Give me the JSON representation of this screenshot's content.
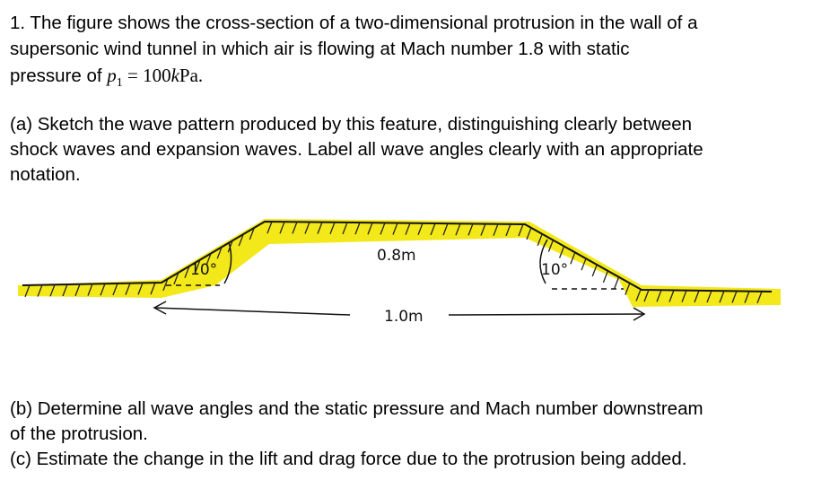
{
  "question": {
    "line1": "1. The figure shows the cross-section of a two-dimensional protrusion in the wall of a",
    "line2": "supersonic wind tunnel in which air is flowing at Mach number 1.8 with static",
    "line3_prefix": "pressure of ",
    "pressure_symbol": "p",
    "pressure_subscript": "1",
    "pressure_eq": " = 100",
    "pressure_unit_k": "k",
    "pressure_unit_rest": "Pa."
  },
  "part_a": {
    "line1": "(a) Sketch the wave pattern produced by this feature, distinguishing clearly between",
    "line2": "shock waves and expansion waves. Label all wave angles clearly with an appropriate",
    "line3": "notation."
  },
  "figure": {
    "left_angle": "10°",
    "right_angle": "10°",
    "top_length": "0.8m",
    "base_length": "1.0m",
    "highlight_color": "#f2e600"
  },
  "part_b": {
    "line1": "(b) Determine all wave angles and the static pressure and Mach number downstream",
    "line2": "of the protrusion."
  },
  "part_c": {
    "line1": "(c) Estimate the change in the lift and drag force due to the protrusion being added."
  }
}
